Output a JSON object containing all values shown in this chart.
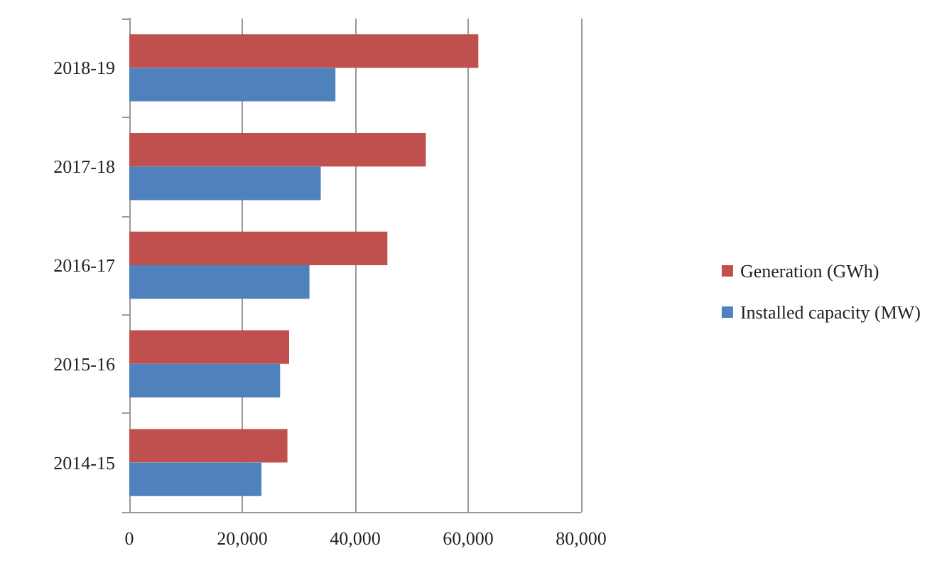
{
  "chart_data": {
    "type": "bar",
    "orientation": "horizontal",
    "categories": [
      "2018-19",
      "2017-18",
      "2016-17",
      "2015-16",
      "2014-15"
    ],
    "series": [
      {
        "name": "Generation (GWh)",
        "color": "#c0504d",
        "values": [
          61800,
          52500,
          45700,
          28300,
          28000
        ]
      },
      {
        "name": "Installed capacity (MW)",
        "color": "#4f81bd",
        "values": [
          36500,
          33900,
          31900,
          26700,
          23400
        ]
      }
    ],
    "xlim": [
      0,
      80000
    ],
    "xticks": [
      {
        "value": 0,
        "label": "0"
      },
      {
        "value": 20000,
        "label": "20,000"
      },
      {
        "value": 40000,
        "label": "40,000"
      },
      {
        "value": 60000,
        "label": "60,000"
      },
      {
        "value": 80000,
        "label": "80,000"
      }
    ],
    "grid": "x",
    "legend": "right"
  }
}
